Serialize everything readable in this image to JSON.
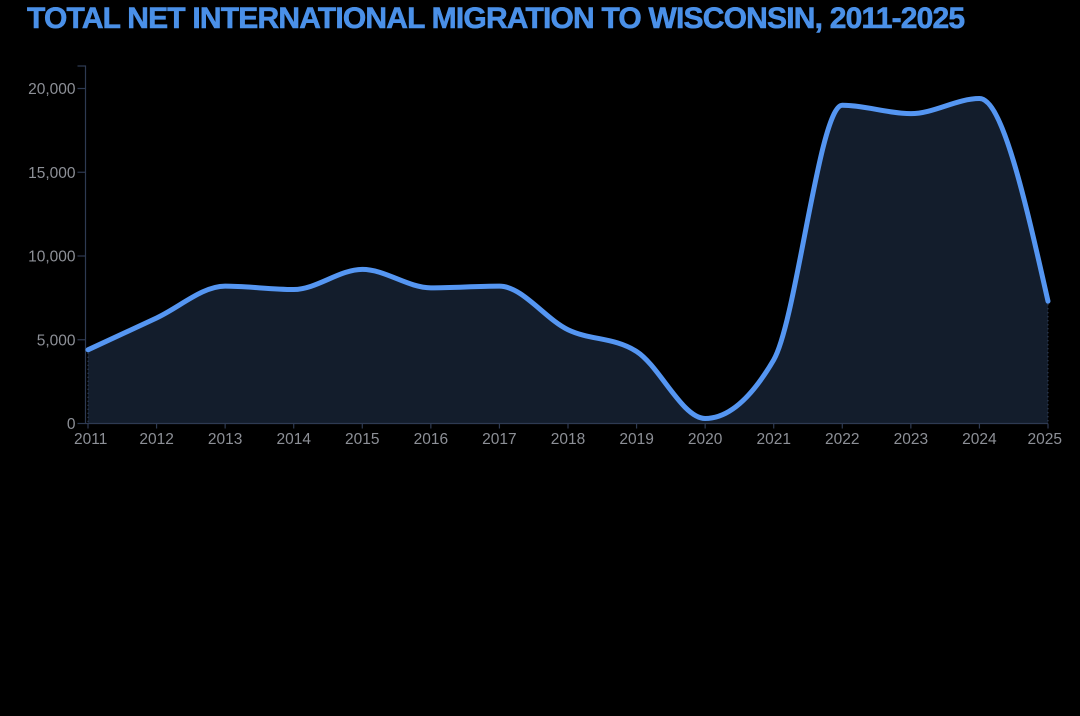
{
  "title": "TOTAL NET INTERNATIONAL MIGRATION TO WISCONSIN, 2011-2025",
  "colors": {
    "background": "#000000",
    "title_text": "#4a90e8",
    "line": "#5596f2",
    "area_fill": "#131d2c",
    "axis": "#2e3a52",
    "tick_label": "#8d9097",
    "area_edge_dotted": "#46587a"
  },
  "chart_data": {
    "type": "area",
    "title": "TOTAL NET INTERNATIONAL MIGRATION TO WISCONSIN, 2011-2025",
    "series_name": "Total net international migration to Wisconsin",
    "x": [
      2011,
      2012,
      2013,
      2014,
      2015,
      2016,
      2017,
      2018,
      2019,
      2020,
      2021,
      2022,
      2023,
      2024,
      2025
    ],
    "values": [
      4400,
      6300,
      8200,
      8000,
      9200,
      8100,
      8200,
      5600,
      4300,
      300,
      3800,
      19000,
      18500,
      19400,
      7300
    ],
    "xlabel": "",
    "ylabel": "",
    "xlim": [
      2011,
      2025
    ],
    "ylim": [
      0,
      20000
    ],
    "y_ticks": [
      0,
      5000,
      10000,
      15000,
      20000
    ],
    "y_tick_labels": [
      "0",
      "5,000",
      "10,000",
      "15,000",
      "20,000"
    ],
    "x_tick_labels": [
      "2011",
      "2012",
      "2013",
      "2014",
      "2015",
      "2016",
      "2017",
      "2018",
      "2019",
      "2020",
      "2021",
      "2022",
      "2023",
      "2024",
      "2025"
    ],
    "grid": false,
    "legend": false,
    "curve": "monotone"
  }
}
